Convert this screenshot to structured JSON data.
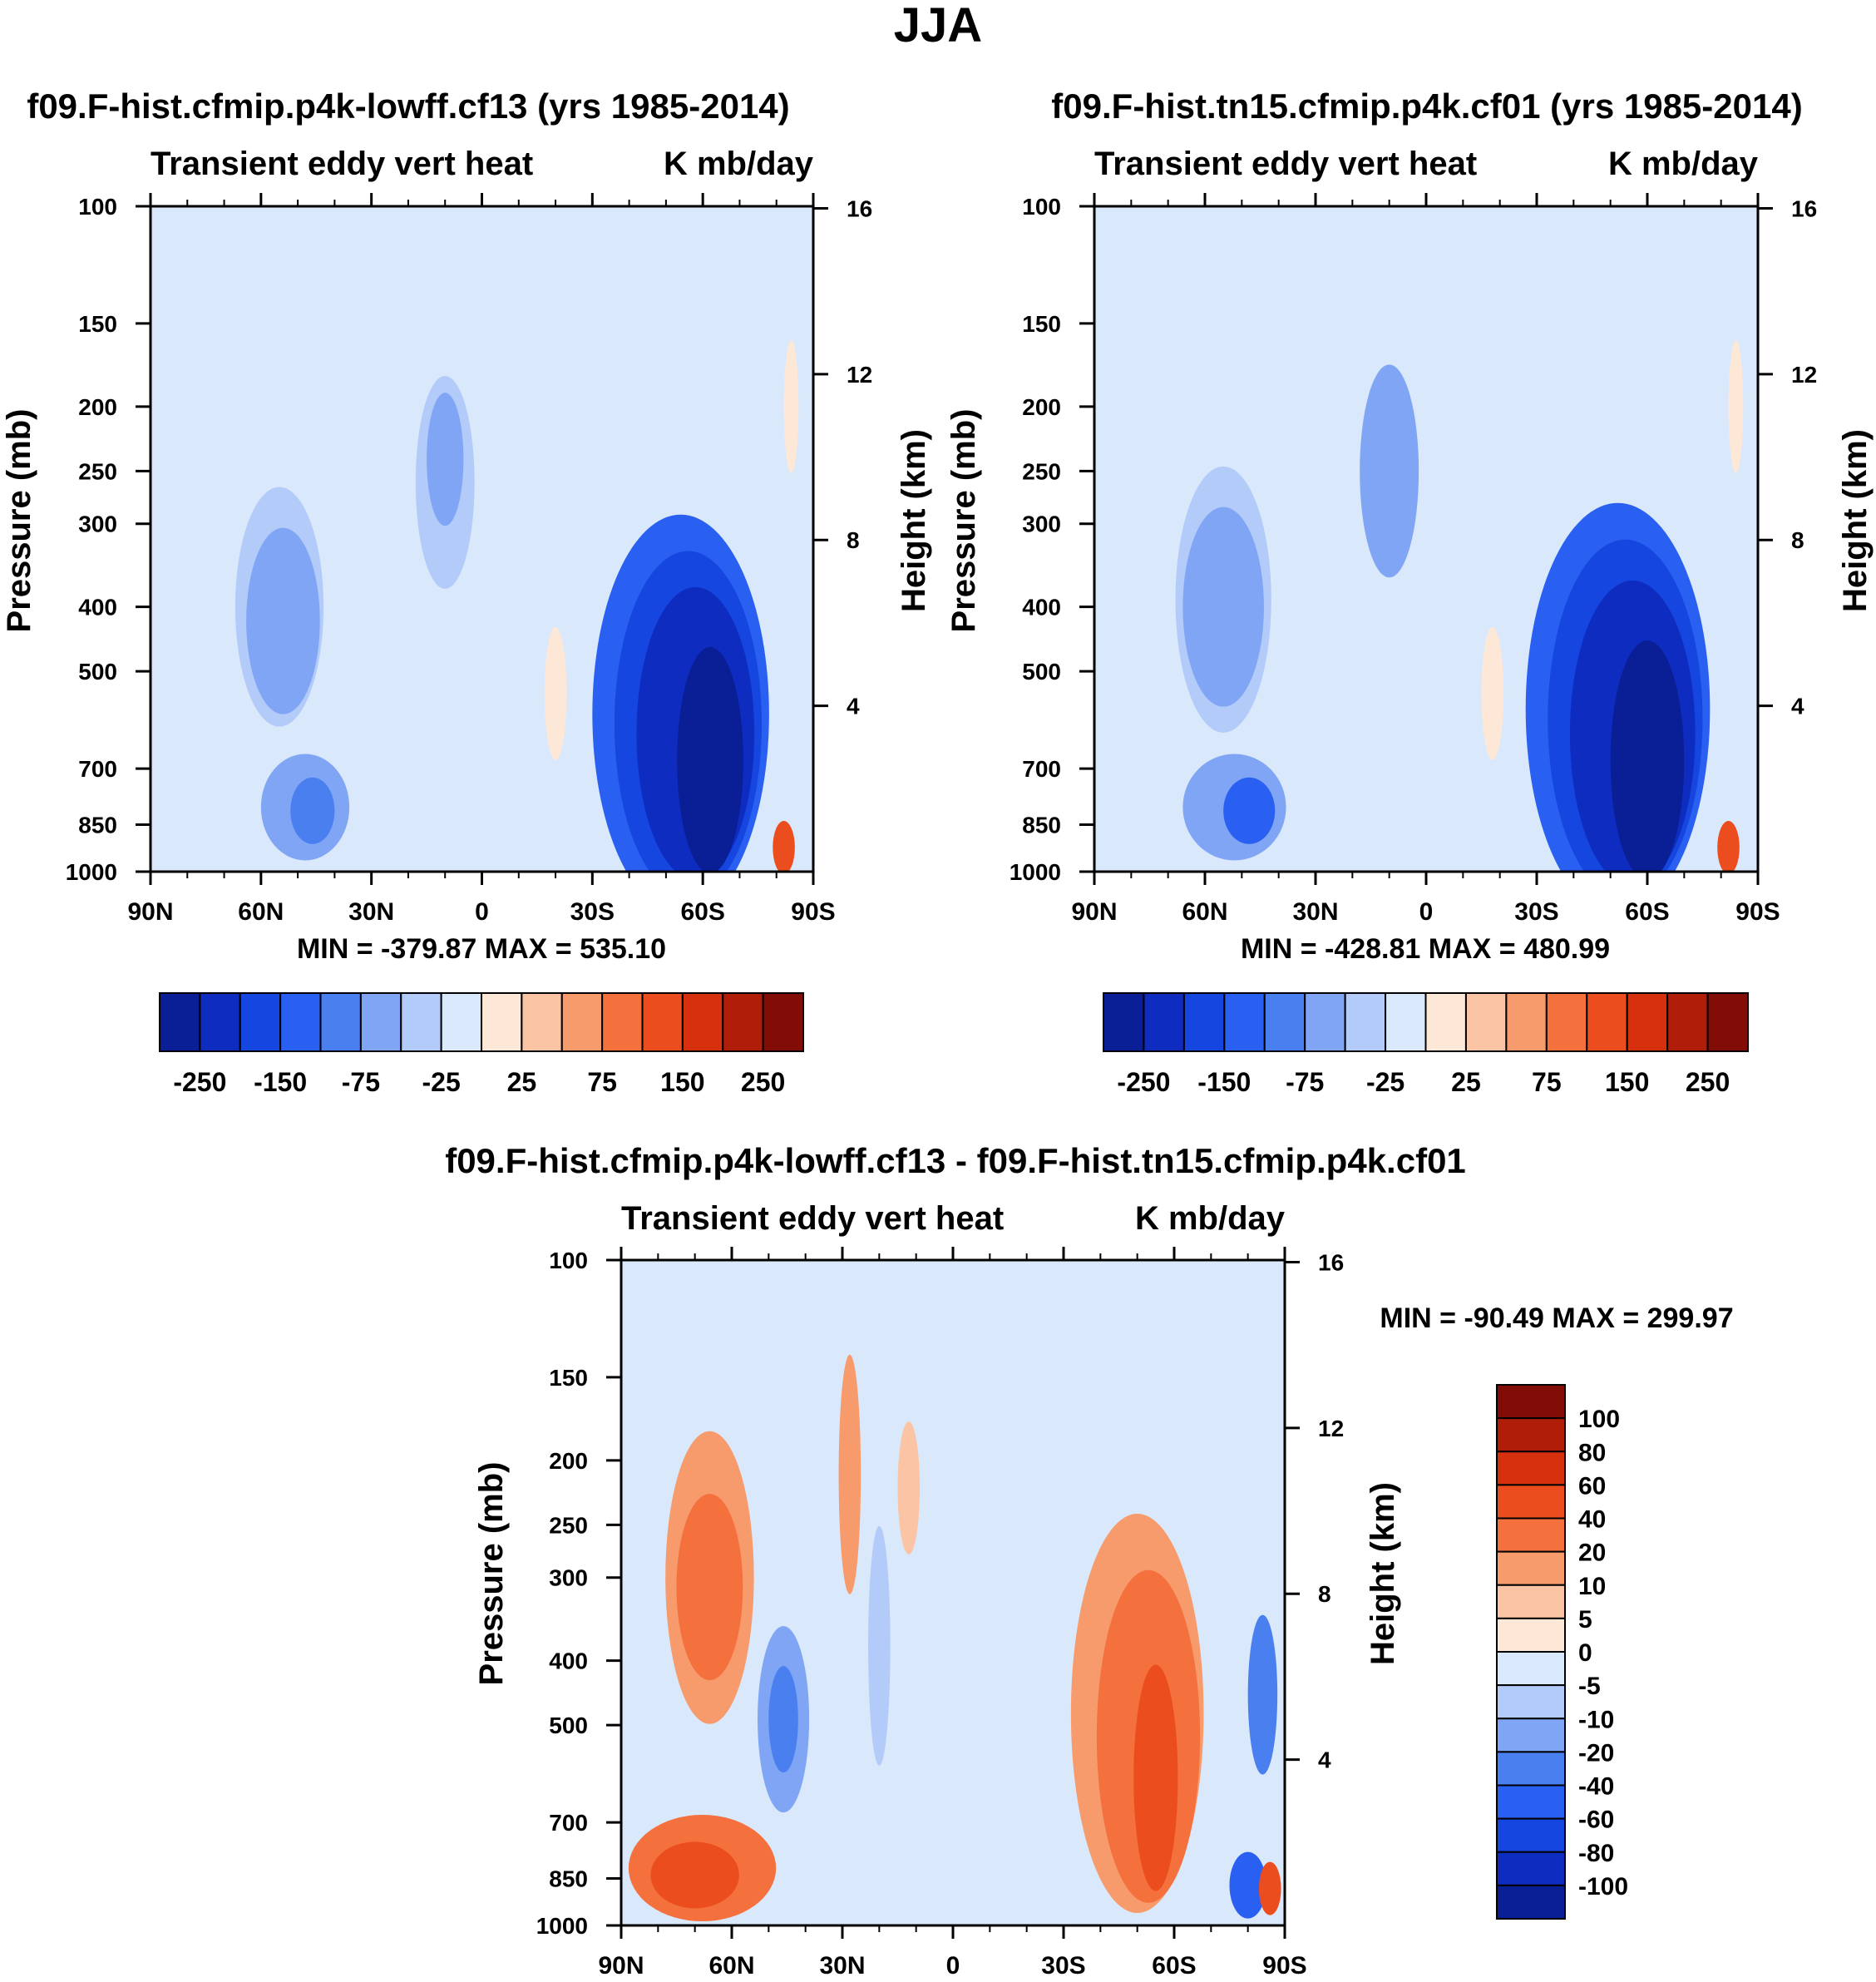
{
  "figure_title": "JJA",
  "chart_data": [
    {
      "type": "heatmap",
      "title": "f09.F-hist.cfmip.p4k-lowff.cf13 (yrs 1985-2014)",
      "subtitle_left": "Transient eddy vert heat",
      "subtitle_right": "K mb/day",
      "xlabel": "",
      "ylabel": "Pressure (mb)",
      "ylabel_right": "Height (km)",
      "x_ticks": [
        "90N",
        "60N",
        "30N",
        "0",
        "30S",
        "60S",
        "90S"
      ],
      "y_ticks": [
        100,
        150,
        200,
        250,
        300,
        400,
        500,
        700,
        850,
        1000
      ],
      "y_ticks_right": [
        16,
        12,
        8,
        4
      ],
      "y_scale": "log",
      "min_max": "MIN = -379.87  MAX = 535.10",
      "colorbar": {
        "orientation": "horizontal",
        "tick_labels": [
          "-250",
          "-150",
          "-75",
          "-25",
          "25",
          "75",
          "150",
          "250"
        ],
        "levels": [
          -250,
          -200,
          -150,
          -100,
          -75,
          -50,
          -25,
          0,
          25,
          50,
          75,
          100,
          150,
          200,
          250
        ],
        "colors": [
          "#0a1e96",
          "#0e2dc0",
          "#1646e0",
          "#2a60f2",
          "#4a7ff0",
          "#7fa5f4",
          "#b3cbf9",
          "#dae8fb",
          "#fde8d8",
          "#fbc5a5",
          "#f79a6c",
          "#f4703c",
          "#ec4d1e",
          "#d6300e",
          "#b01e0a",
          "#820c06"
        ]
      },
      "features": [
        {
          "kind": "ellipse",
          "lat": 30,
          "p": 145,
          "rx_deg": 8,
          "ry_dec": 0.22,
          "value": -10
        },
        {
          "kind": "ellipse",
          "lat": 55,
          "p": 400,
          "rx_deg": 12,
          "ry_dec": 0.18,
          "value": -40
        },
        {
          "kind": "ellipse",
          "lat": 54,
          "p": 420,
          "rx_deg": 10,
          "ry_dec": 0.14,
          "value": -60
        },
        {
          "kind": "ellipse",
          "lat": 48,
          "p": 800,
          "rx_deg": 12,
          "ry_dec": 0.08,
          "value": -50
        },
        {
          "kind": "ellipse",
          "lat": 46,
          "p": 810,
          "rx_deg": 6,
          "ry_dec": 0.05,
          "value": -90
        },
        {
          "kind": "ellipse",
          "lat": 10,
          "p": 260,
          "rx_deg": 8,
          "ry_dec": 0.16,
          "value": -40
        },
        {
          "kind": "ellipse",
          "lat": 10,
          "p": 240,
          "rx_deg": 5,
          "ry_dec": 0.1,
          "value": -60
        },
        {
          "kind": "ellipse",
          "lat": -54,
          "p": 580,
          "rx_deg": 24,
          "ry_dec": 0.3,
          "value": -100
        },
        {
          "kind": "ellipse",
          "lat": -56,
          "p": 600,
          "rx_deg": 20,
          "ry_dec": 0.26,
          "value": -150
        },
        {
          "kind": "ellipse",
          "lat": -58,
          "p": 620,
          "rx_deg": 16,
          "ry_dec": 0.22,
          "value": -200
        },
        {
          "kind": "ellipse",
          "lat": -62,
          "p": 680,
          "rx_deg": 9,
          "ry_dec": 0.17,
          "value": -260
        },
        {
          "kind": "ellipse",
          "lat": -82,
          "p": 920,
          "rx_deg": 3,
          "ry_dec": 0.04,
          "value": 120
        },
        {
          "kind": "ellipse",
          "lat": -20,
          "p": 540,
          "rx_deg": 3,
          "ry_dec": 0.1,
          "value": 12
        },
        {
          "kind": "ellipse",
          "lat": -84,
          "p": 200,
          "rx_deg": 2,
          "ry_dec": 0.1,
          "value": 10
        }
      ]
    },
    {
      "type": "heatmap",
      "title": "f09.F-hist.tn15.cfmip.p4k.cf01 (yrs 1985-2014)",
      "subtitle_left": "Transient eddy vert heat",
      "subtitle_right": "K mb/day",
      "xlabel": "",
      "ylabel": "Pressure (mb)",
      "ylabel_right": "Height (km)",
      "x_ticks": [
        "90N",
        "60N",
        "30N",
        "0",
        "30S",
        "60S",
        "90S"
      ],
      "y_ticks": [
        100,
        150,
        200,
        250,
        300,
        400,
        500,
        700,
        850,
        1000
      ],
      "y_ticks_right": [
        16,
        12,
        8,
        4
      ],
      "y_scale": "log",
      "min_max": "MIN = -428.81  MAX = 480.99",
      "colorbar": {
        "orientation": "horizontal",
        "tick_labels": [
          "-250",
          "-150",
          "-75",
          "-25",
          "25",
          "75",
          "150",
          "250"
        ],
        "levels": [
          -250,
          -200,
          -150,
          -100,
          -75,
          -50,
          -25,
          0,
          25,
          50,
          75,
          100,
          150,
          200,
          250
        ],
        "colors": [
          "#0a1e96",
          "#0e2dc0",
          "#1646e0",
          "#2a60f2",
          "#4a7ff0",
          "#7fa5f4",
          "#b3cbf9",
          "#dae8fb",
          "#fde8d8",
          "#fbc5a5",
          "#f79a6c",
          "#f4703c",
          "#ec4d1e",
          "#d6300e",
          "#b01e0a",
          "#820c06"
        ]
      },
      "features": [
        {
          "kind": "ellipse",
          "lat": 28,
          "p": 140,
          "rx_deg": 9,
          "ry_dec": 0.24,
          "value": -10
        },
        {
          "kind": "ellipse",
          "lat": 55,
          "p": 390,
          "rx_deg": 13,
          "ry_dec": 0.2,
          "value": -40
        },
        {
          "kind": "ellipse",
          "lat": 55,
          "p": 400,
          "rx_deg": 11,
          "ry_dec": 0.15,
          "value": -60
        },
        {
          "kind": "ellipse",
          "lat": 52,
          "p": 800,
          "rx_deg": 14,
          "ry_dec": 0.08,
          "value": -60
        },
        {
          "kind": "ellipse",
          "lat": 48,
          "p": 810,
          "rx_deg": 7,
          "ry_dec": 0.05,
          "value": -100
        },
        {
          "kind": "ellipse",
          "lat": 10,
          "p": 250,
          "rx_deg": 8,
          "ry_dec": 0.16,
          "value": -50
        },
        {
          "kind": "ellipse",
          "lat": 10,
          "p": 240,
          "rx_deg": 5,
          "ry_dec": 0.1,
          "value": -70
        },
        {
          "kind": "ellipse",
          "lat": -52,
          "p": 570,
          "rx_deg": 25,
          "ry_dec": 0.31,
          "value": -100
        },
        {
          "kind": "ellipse",
          "lat": -54,
          "p": 590,
          "rx_deg": 21,
          "ry_dec": 0.27,
          "value": -160
        },
        {
          "kind": "ellipse",
          "lat": -56,
          "p": 620,
          "rx_deg": 17,
          "ry_dec": 0.23,
          "value": -210
        },
        {
          "kind": "ellipse",
          "lat": -60,
          "p": 680,
          "rx_deg": 10,
          "ry_dec": 0.18,
          "value": -270
        },
        {
          "kind": "ellipse",
          "lat": -82,
          "p": 920,
          "rx_deg": 3,
          "ry_dec": 0.04,
          "value": 120
        },
        {
          "kind": "ellipse",
          "lat": -18,
          "p": 540,
          "rx_deg": 3,
          "ry_dec": 0.1,
          "value": 12
        },
        {
          "kind": "ellipse",
          "lat": -84,
          "p": 200,
          "rx_deg": 2,
          "ry_dec": 0.1,
          "value": 10
        }
      ]
    },
    {
      "type": "heatmap",
      "title": "f09.F-hist.cfmip.p4k-lowff.cf13 - f09.F-hist.tn15.cfmip.p4k.cf01",
      "subtitle_left": "Transient eddy vert heat",
      "subtitle_right": "K mb/day",
      "xlabel": "",
      "ylabel": "Pressure (mb)",
      "ylabel_right": "Height (km)",
      "x_ticks": [
        "90N",
        "60N",
        "30N",
        "0",
        "30S",
        "60S",
        "90S"
      ],
      "y_ticks": [
        100,
        150,
        200,
        250,
        300,
        400,
        500,
        700,
        850,
        1000
      ],
      "y_ticks_right": [
        16,
        12,
        8,
        4
      ],
      "y_scale": "log",
      "min_max": "MIN = -90.49  MAX = 299.97",
      "colorbar": {
        "orientation": "vertical",
        "tick_labels": [
          "100",
          "80",
          "60",
          "40",
          "20",
          "10",
          "5",
          "0",
          "-5",
          "-10",
          "-20",
          "-40",
          "-60",
          "-80",
          "-100"
        ],
        "levels": [
          -100,
          -80,
          -60,
          -40,
          -20,
          -10,
          -5,
          0,
          5,
          10,
          20,
          40,
          60,
          80,
          100
        ],
        "colors": [
          "#0a1e96",
          "#0e2dc0",
          "#1646e0",
          "#2a60f2",
          "#4a7ff0",
          "#7fa5f4",
          "#b3cbf9",
          "#dae8fb",
          "#fde8d8",
          "#fbc5a5",
          "#f79a6c",
          "#f4703c",
          "#ec4d1e",
          "#d6300e",
          "#b01e0a",
          "#820c06"
        ]
      },
      "features": [
        {
          "kind": "ellipse",
          "lat": 66,
          "p": 300,
          "rx_deg": 12,
          "ry_dec": 0.22,
          "value": 15
        },
        {
          "kind": "ellipse",
          "lat": 66,
          "p": 310,
          "rx_deg": 9,
          "ry_dec": 0.14,
          "value": 22
        },
        {
          "kind": "ellipse",
          "lat": 68,
          "p": 820,
          "rx_deg": 20,
          "ry_dec": 0.08,
          "value": 22
        },
        {
          "kind": "ellipse",
          "lat": 70,
          "p": 840,
          "rx_deg": 12,
          "ry_dec": 0.05,
          "value": 45
        },
        {
          "kind": "ellipse",
          "lat": 46,
          "p": 490,
          "rx_deg": 7,
          "ry_dec": 0.14,
          "value": -12
        },
        {
          "kind": "ellipse",
          "lat": 46,
          "p": 490,
          "rx_deg": 4,
          "ry_dec": 0.08,
          "value": -25
        },
        {
          "kind": "ellipse",
          "lat": 28,
          "p": 210,
          "rx_deg": 3,
          "ry_dec": 0.18,
          "value": 12
        },
        {
          "kind": "ellipse",
          "lat": 12,
          "p": 220,
          "rx_deg": 3,
          "ry_dec": 0.1,
          "value": 8
        },
        {
          "kind": "ellipse",
          "lat": 20,
          "p": 380,
          "rx_deg": 3,
          "ry_dec": 0.18,
          "value": -8
        },
        {
          "kind": "ellipse",
          "lat": -50,
          "p": 480,
          "rx_deg": 18,
          "ry_dec": 0.3,
          "value": 15
        },
        {
          "kind": "ellipse",
          "lat": -53,
          "p": 520,
          "rx_deg": 14,
          "ry_dec": 0.25,
          "value": 30
        },
        {
          "kind": "ellipse",
          "lat": -55,
          "p": 600,
          "rx_deg": 6,
          "ry_dec": 0.17,
          "value": 45
        },
        {
          "kind": "ellipse",
          "lat": -84,
          "p": 450,
          "rx_deg": 4,
          "ry_dec": 0.12,
          "value": -30
        },
        {
          "kind": "ellipse",
          "lat": -80,
          "p": 870,
          "rx_deg": 5,
          "ry_dec": 0.05,
          "value": -45
        },
        {
          "kind": "ellipse",
          "lat": -86,
          "p": 880,
          "rx_deg": 3,
          "ry_dec": 0.04,
          "value": 45
        }
      ]
    }
  ]
}
